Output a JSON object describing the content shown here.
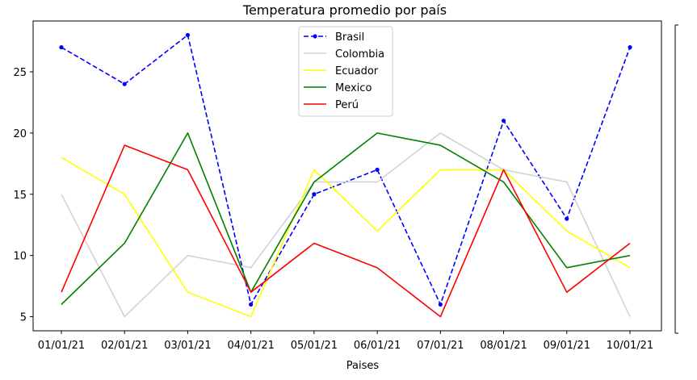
{
  "chart_data": {
    "type": "line",
    "title": "Temperatura promedio por país",
    "xlabel": "Paises",
    "ylabel": "",
    "categories": [
      "01/01/21",
      "02/01/21",
      "03/01/21",
      "04/01/21",
      "05/01/21",
      "06/01/21",
      "07/01/21",
      "08/01/21",
      "09/01/21",
      "10/01/21"
    ],
    "yticks": [
      5,
      10,
      15,
      20,
      25
    ],
    "ylim": [
      3.85,
      29.15
    ],
    "grid": false,
    "legend": "top-center",
    "series": [
      {
        "name": "Brasil",
        "color": "#0000ff",
        "dash": "dashed",
        "marker": "dot",
        "values": [
          27,
          24,
          28,
          6,
          15,
          17,
          6,
          21,
          13,
          27
        ]
      },
      {
        "name": "Colombia",
        "color": "#d3d3d3",
        "dash": "solid",
        "marker": "none",
        "values": [
          15,
          5,
          10,
          9,
          16,
          16,
          20,
          17,
          16,
          5
        ]
      },
      {
        "name": "Ecuador",
        "color": "#ffff00",
        "dash": "solid",
        "marker": "none",
        "values": [
          18,
          15,
          7,
          5,
          17,
          12,
          17,
          17,
          12,
          9
        ]
      },
      {
        "name": "Mexico",
        "color": "#008000",
        "dash": "solid",
        "marker": "none",
        "values": [
          6,
          11,
          20,
          7,
          16,
          20,
          19,
          16,
          9,
          10
        ]
      },
      {
        "name": "Perú",
        "color": "#ff0000",
        "dash": "solid",
        "marker": "none",
        "values": [
          7,
          19,
          17,
          7,
          11,
          9,
          5,
          17,
          7,
          11
        ]
      }
    ]
  }
}
